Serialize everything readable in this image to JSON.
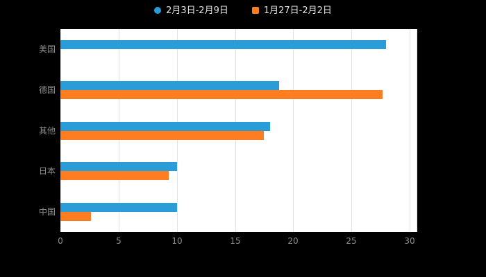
{
  "legend": {
    "items": [
      {
        "label": "2月3日-2月9日",
        "color": "#2a9cd7",
        "shape": "circle"
      },
      {
        "label": "1月27日-2月2日",
        "color": "#fd7d20",
        "shape": "square"
      }
    ]
  },
  "chart_data": {
    "type": "bar",
    "orientation": "horizontal",
    "title": "",
    "xlabel": "",
    "ylabel": "",
    "categories": [
      "美国",
      "德国",
      "其他",
      "日本",
      "中国"
    ],
    "series": [
      {
        "name": "2月3日-2月9日",
        "color": "#2a9cd7",
        "values": [
          28.0,
          18.8,
          18.0,
          10.0,
          10.0
        ]
      },
      {
        "name": "1月27日-2月2日",
        "color": "#fd7d20",
        "values": [
          0,
          27.7,
          17.5,
          9.3,
          2.6
        ]
      }
    ],
    "xlim": [
      0,
      30
    ],
    "xticks": [
      0,
      5,
      10,
      15,
      20,
      25,
      30
    ],
    "grid": true,
    "legend_position": "top"
  },
  "colors": {
    "background": "#000000",
    "plot_background": "#ffffff",
    "gridline": "#e2e2e2",
    "axis_text": "#8f8f8f",
    "legend_text": "#e4e4e4"
  }
}
